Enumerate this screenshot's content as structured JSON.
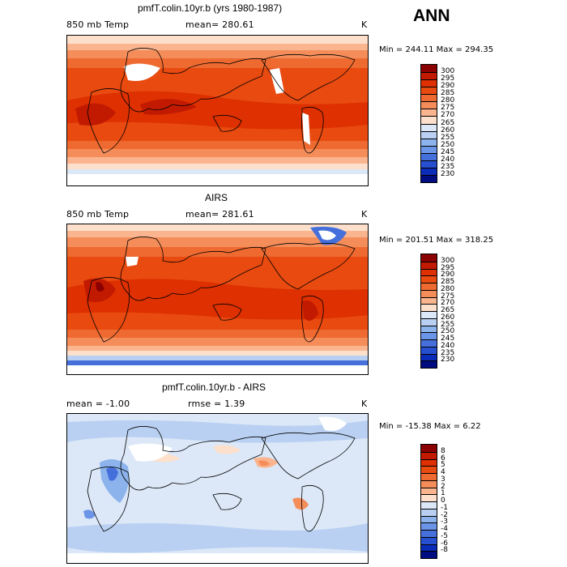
{
  "header": {
    "season": "ANN"
  },
  "panels": [
    {
      "title": "pmfT.colin.10yr.b (yrs 1980-1987)",
      "variable": "850 mb Temp",
      "stat1": "mean= 280.61",
      "stat2": "",
      "units": "K",
      "minmax": "Min = 244.11 Max = 294.35",
      "colorbar": {
        "labels": [
          "300",
          "295",
          "290",
          "285",
          "280",
          "275",
          "270",
          "265",
          "260",
          "255",
          "250",
          "245",
          "240",
          "235",
          "230"
        ],
        "colors": [
          "#8b0000",
          "#c21a00",
          "#de3000",
          "#e84a10",
          "#ee6a30",
          "#f48d5a",
          "#fab58f",
          "#fde0cc",
          "#dce8f8",
          "#b9d0f2",
          "#8db3ec",
          "#6b95e6",
          "#4570dc",
          "#2650d0",
          "#0b2cb8",
          "#000c80"
        ]
      },
      "field": "model"
    },
    {
      "title": "AIRS",
      "variable": "850 mb Temp",
      "stat1": "mean= 281.61",
      "stat2": "",
      "units": "K",
      "minmax": "Min = 201.51 Max = 318.25",
      "colorbar": {
        "labels": [
          "300",
          "295",
          "290",
          "285",
          "280",
          "275",
          "270",
          "265",
          "260",
          "255",
          "250",
          "245",
          "240",
          "235",
          "230"
        ],
        "colors": [
          "#8b0000",
          "#c21a00",
          "#de3000",
          "#e84a10",
          "#ee6a30",
          "#f48d5a",
          "#fab58f",
          "#fde0cc",
          "#dce8f8",
          "#b9d0f2",
          "#8db3ec",
          "#6b95e6",
          "#4570dc",
          "#2650d0",
          "#0b2cb8",
          "#000c80"
        ]
      },
      "field": "obs"
    },
    {
      "title": "pmfT.colin.10yr.b - AIRS",
      "variable": "",
      "stat1": "mean =   -1.00",
      "stat2": "rmse =    1.39",
      "units": "K",
      "minmax": "Min = -15.38 Max =    6.22",
      "colorbar": {
        "labels": [
          "8",
          "6",
          "5",
          "4",
          "3",
          "2",
          "1",
          "0",
          "-1",
          "-2",
          "-3",
          "-4",
          "-5",
          "-6",
          "-8"
        ],
        "colors": [
          "#8b0000",
          "#c21a00",
          "#de3000",
          "#e84a10",
          "#ee6a30",
          "#f48d5a",
          "#fab58f",
          "#fde0cc",
          "#dce8f8",
          "#b9d0f2",
          "#8db3ec",
          "#6b95e6",
          "#4570dc",
          "#2650d0",
          "#0b2cb8",
          "#000c80"
        ]
      },
      "field": "diff"
    }
  ]
}
